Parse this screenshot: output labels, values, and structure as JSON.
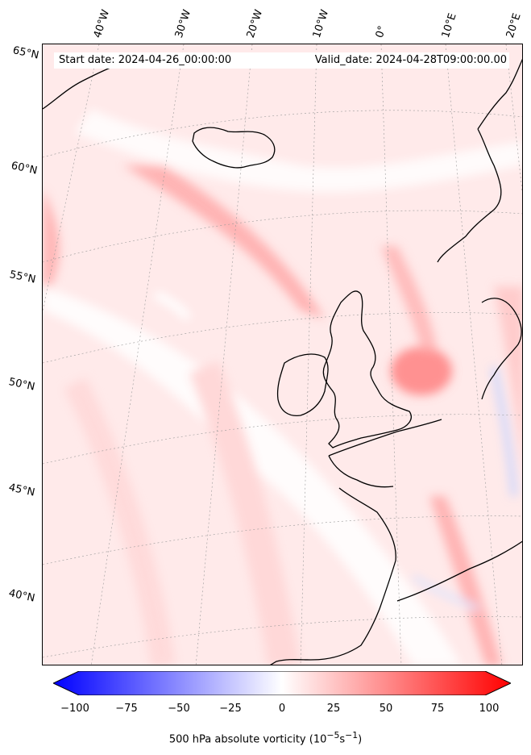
{
  "map": {
    "start_date": "Start date: 2024-04-26_00:00:00",
    "valid_date": "Valid_date: 2024-04-28T09:00:00.00",
    "lat_labels": [
      "65°N",
      "60°N",
      "55°N",
      "50°N",
      "45°N",
      "40°N"
    ],
    "lon_labels": [
      "40°W",
      "30°W",
      "20°W",
      "10°W",
      "0°",
      "10°E",
      "20°E"
    ],
    "colorbar": {
      "title": "500 hPa absolute vorticity (10",
      "title_exp": "−5",
      "title_unit": "s",
      "title_exp2": "−1",
      "title_close": ")",
      "min": -100,
      "max": 100,
      "ticks": [
        "−100",
        "−75",
        "−50",
        "−25",
        "0",
        "25",
        "50",
        "75",
        "100"
      ],
      "negative_color": "#0000ff",
      "positive_color": "#ff0000"
    }
  }
}
